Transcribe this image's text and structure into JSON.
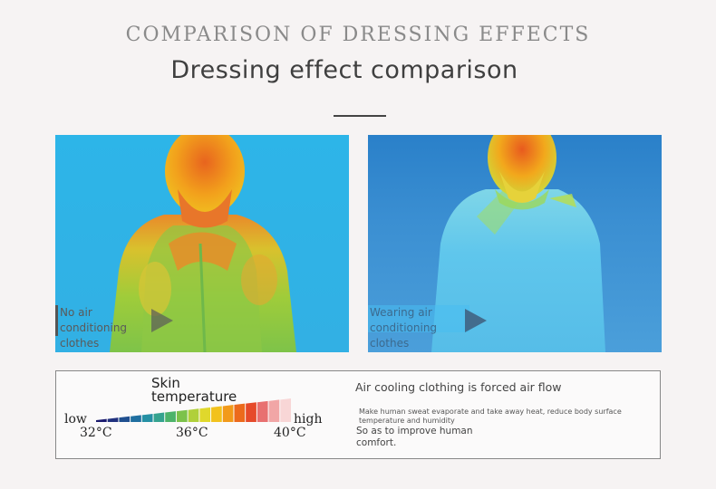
{
  "header": {
    "title_en": "COMPARISON OF DRESSING EFFECTS",
    "title_main": "Dressing effect comparison"
  },
  "panels": [
    {
      "caption": "No air conditioning clothes",
      "caption_line1": "No air conditioning",
      "caption_line2": "clothes",
      "icon": "play-icon"
    },
    {
      "caption": "Wearing air conditioning clothes",
      "caption_line1": "Wearing air",
      "caption_line2": "conditioning clothes",
      "icon": "play-icon"
    }
  ],
  "legend": {
    "skin_line1": "Skin",
    "skin_line2": "temperature",
    "low": "low",
    "high": "high",
    "temps": [
      "32°C",
      "36°C",
      "40°C"
    ],
    "colors": [
      "#1a1a6e",
      "#20307e",
      "#1f4f8f",
      "#1f6fa0",
      "#2590a4",
      "#35a38f",
      "#4db36a",
      "#7cc24a",
      "#b0d03a",
      "#e0d82c",
      "#f2c21d",
      "#f29a1a",
      "#ec6a1c",
      "#e64a2a",
      "#e87070",
      "#f1a6a6",
      "#f8d6d6"
    ]
  },
  "info": {
    "heading": "Air cooling clothing is forced air flow",
    "detail": "Make human sweat evaporate and take away heat, reduce body surface temperature and humidity",
    "sub": "So as to improve human comfort."
  }
}
